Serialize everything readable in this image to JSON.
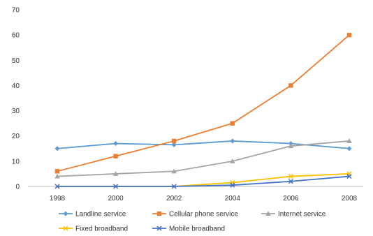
{
  "chart_data": {
    "type": "line",
    "title": "",
    "xlabel": "",
    "ylabel": "",
    "x": [
      "1998",
      "2000",
      "2002",
      "2004",
      "2006",
      "2008"
    ],
    "ylim": [
      0,
      70
    ],
    "yticks": [
      "0",
      "10",
      "20",
      "30",
      "40",
      "50",
      "60",
      "70"
    ],
    "grid": false,
    "legend_position": "bottom",
    "series": [
      {
        "name": "Landline service",
        "color": "#5b9bd5",
        "marker": "diamond",
        "values": [
          15,
          17,
          16.5,
          18,
          17,
          15
        ]
      },
      {
        "name": "Cellular phone service",
        "color": "#ed7d31",
        "marker": "square",
        "values": [
          6,
          12,
          18,
          25,
          40,
          60
        ]
      },
      {
        "name": "Internet service",
        "color": "#a5a5a5",
        "marker": "triangle",
        "values": [
          4,
          5,
          6,
          10,
          16,
          18
        ]
      },
      {
        "name": "Fixed broadband",
        "color": "#ffc000",
        "marker": "x",
        "values": [
          0,
          0,
          0,
          1.5,
          4,
          5
        ]
      },
      {
        "name": "Mobile broadband",
        "color": "#4472c4",
        "marker": "x",
        "values": [
          0,
          0,
          0,
          0.5,
          2,
          4
        ]
      }
    ]
  }
}
